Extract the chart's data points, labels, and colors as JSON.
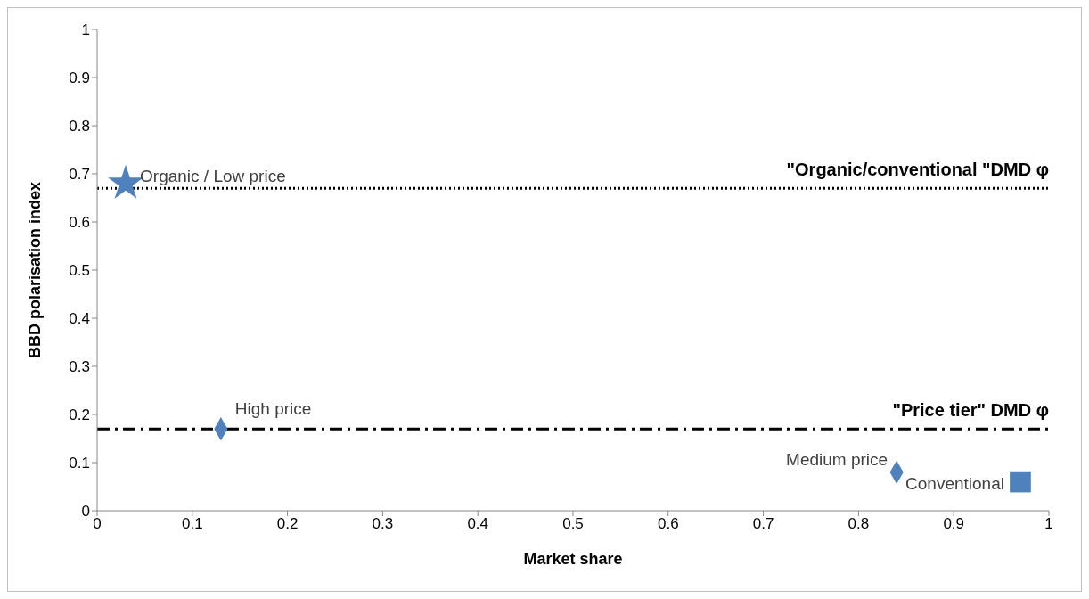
{
  "chart_data": {
    "type": "scatter",
    "xlabel": "Market share",
    "ylabel": "BBD polarisation index",
    "xlim": [
      0,
      1
    ],
    "ylim": [
      0,
      1
    ],
    "xticks": [
      0,
      0.1,
      0.2,
      0.3,
      0.4,
      0.5,
      0.6,
      0.7,
      0.8,
      0.9,
      1
    ],
    "yticks": [
      0,
      0.1,
      0.2,
      0.3,
      0.4,
      0.5,
      0.6,
      0.7,
      0.8,
      0.9,
      1
    ],
    "grid": false,
    "legend": false,
    "series": [
      {
        "name": "Organic /  Low price",
        "color": "#4f81bd",
        "marker": "star",
        "x": [
          0.03
        ],
        "values": [
          0.68
        ]
      },
      {
        "name": "High price",
        "color": "#4f81bd",
        "marker": "diamond",
        "x": [
          0.13
        ],
        "values": [
          0.17
        ]
      },
      {
        "name": "Medium price",
        "color": "#4f81bd",
        "marker": "diamond",
        "x": [
          0.84
        ],
        "values": [
          0.08
        ]
      },
      {
        "name": "Conventional",
        "color": "#4f81bd",
        "marker": "square",
        "x": [
          0.97
        ],
        "values": [
          0.06
        ]
      }
    ],
    "ref_lines": [
      {
        "axis": "y",
        "value": 0.67,
        "label": "\"Organic/conventional \"DMD φ",
        "color": "#000000",
        "line_style": "dotted"
      },
      {
        "axis": "y",
        "value": 0.17,
        "label": "\"Price tier\" DMD φ",
        "color": "#000000",
        "line_style": "dashed"
      }
    ]
  }
}
